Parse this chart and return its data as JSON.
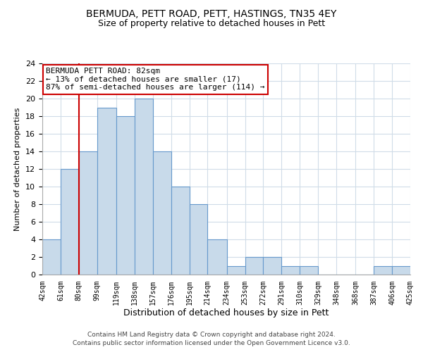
{
  "title1": "BERMUDA, PETT ROAD, PETT, HASTINGS, TN35 4EY",
  "title2": "Size of property relative to detached houses in Pett",
  "xlabel": "Distribution of detached houses by size in Pett",
  "ylabel": "Number of detached properties",
  "bin_edges": [
    42,
    61,
    80,
    99,
    119,
    138,
    157,
    176,
    195,
    214,
    234,
    253,
    272,
    291,
    310,
    329,
    348,
    368,
    387,
    406,
    425
  ],
  "bin_counts": [
    4,
    12,
    14,
    19,
    18,
    20,
    14,
    10,
    8,
    4,
    1,
    2,
    2,
    1,
    1,
    0,
    0,
    0,
    1,
    1
  ],
  "bar_color": "#c8daea",
  "bar_edge_color": "#6699cc",
  "vline_x": 80,
  "vline_color": "#cc0000",
  "annotation_title": "BERMUDA PETT ROAD: 82sqm",
  "annotation_line1": "← 13% of detached houses are smaller (17)",
  "annotation_line2": "87% of semi-detached houses are larger (114) →",
  "annotation_box_color": "#ffffff",
  "annotation_box_edge": "#cc0000",
  "tick_labels": [
    "42sqm",
    "61sqm",
    "80sqm",
    "99sqm",
    "119sqm",
    "138sqm",
    "157sqm",
    "176sqm",
    "195sqm",
    "214sqm",
    "234sqm",
    "253sqm",
    "272sqm",
    "291sqm",
    "310sqm",
    "329sqm",
    "348sqm",
    "368sqm",
    "387sqm",
    "406sqm",
    "425sqm"
  ],
  "ylim": [
    0,
    24
  ],
  "yticks": [
    0,
    2,
    4,
    6,
    8,
    10,
    12,
    14,
    16,
    18,
    20,
    22,
    24
  ],
  "footnote1": "Contains HM Land Registry data © Crown copyright and database right 2024.",
  "footnote2": "Contains public sector information licensed under the Open Government Licence v3.0.",
  "bg_color": "#ffffff",
  "grid_color": "#d0dce8"
}
